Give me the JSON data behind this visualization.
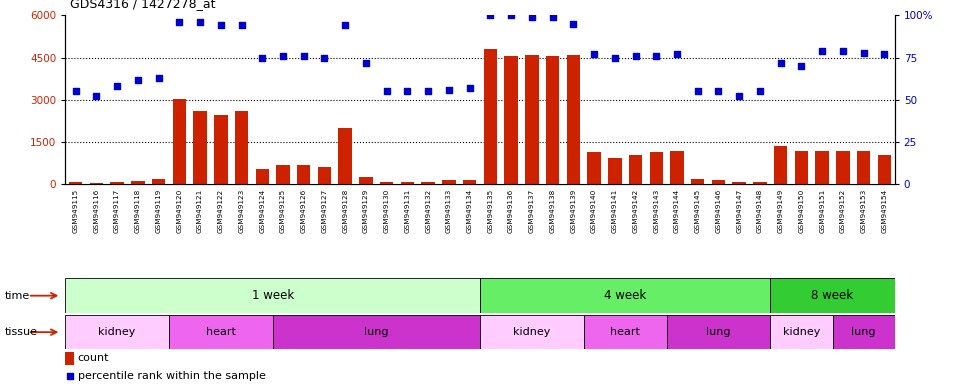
{
  "title": "GDS4316 / 1427278_at",
  "samples": [
    "GSM949115",
    "GSM949116",
    "GSM949117",
    "GSM949118",
    "GSM949119",
    "GSM949120",
    "GSM949121",
    "GSM949122",
    "GSM949123",
    "GSM949124",
    "GSM949125",
    "GSM949126",
    "GSM949127",
    "GSM949128",
    "GSM949129",
    "GSM949130",
    "GSM949131",
    "GSM949132",
    "GSM949133",
    "GSM949134",
    "GSM949135",
    "GSM949136",
    "GSM949137",
    "GSM949138",
    "GSM949139",
    "GSM949140",
    "GSM949141",
    "GSM949142",
    "GSM949143",
    "GSM949144",
    "GSM949145",
    "GSM949146",
    "GSM949147",
    "GSM949148",
    "GSM949149",
    "GSM949150",
    "GSM949151",
    "GSM949152",
    "GSM949153",
    "GSM949154"
  ],
  "counts": [
    80,
    50,
    80,
    130,
    200,
    3020,
    2620,
    2450,
    2600,
    550,
    700,
    700,
    600,
    2000,
    250,
    100,
    80,
    100,
    150,
    150,
    4800,
    4550,
    4600,
    4550,
    4600,
    1150,
    950,
    1050,
    1150,
    1200,
    200,
    150,
    100,
    100,
    1350,
    1200,
    1200,
    1200,
    1200,
    1050
  ],
  "percentile": [
    55,
    52,
    58,
    62,
    63,
    96,
    96,
    94,
    94,
    75,
    76,
    76,
    75,
    94,
    72,
    55,
    55,
    55,
    56,
    57,
    100,
    100,
    99,
    99,
    95,
    77,
    75,
    76,
    76,
    77,
    55,
    55,
    52,
    55,
    72,
    70,
    79,
    79,
    78,
    77
  ],
  "ylim_left": [
    0,
    6000
  ],
  "ylim_right": [
    0,
    100
  ],
  "yticks_left": [
    0,
    1500,
    3000,
    4500,
    6000
  ],
  "yticks_right": [
    0,
    25,
    50,
    75,
    100
  ],
  "ytick_right_labels": [
    "0",
    "25",
    "50",
    "75",
    "100%"
  ],
  "bar_color": "#cc2200",
  "dot_color": "#0000cc",
  "time_groups": [
    {
      "label": "1 week",
      "start": 0,
      "end": 19,
      "color": "#ccffcc"
    },
    {
      "label": "4 week",
      "start": 20,
      "end": 33,
      "color": "#66ee66"
    },
    {
      "label": "8 week",
      "start": 34,
      "end": 39,
      "color": "#33cc33"
    }
  ],
  "tissue_groups": [
    {
      "label": "kidney",
      "start": 0,
      "end": 4,
      "color": "#ffccff"
    },
    {
      "label": "heart",
      "start": 5,
      "end": 9,
      "color": "#ee66ee"
    },
    {
      "label": "lung",
      "start": 10,
      "end": 19,
      "color": "#cc33cc"
    },
    {
      "label": "kidney",
      "start": 20,
      "end": 24,
      "color": "#ffccff"
    },
    {
      "label": "heart",
      "start": 25,
      "end": 28,
      "color": "#ee66ee"
    },
    {
      "label": "lung",
      "start": 29,
      "end": 33,
      "color": "#cc33cc"
    },
    {
      "label": "kidney",
      "start": 34,
      "end": 36,
      "color": "#ffccff"
    },
    {
      "label": "lung",
      "start": 37,
      "end": 39,
      "color": "#cc33cc"
    }
  ],
  "bar_color_legend": "#cc2200",
  "dot_color_legend": "#0000cc",
  "label_bg_color": "#dddddd",
  "fig_width": 9.6,
  "fig_height": 3.84,
  "dpi": 100
}
